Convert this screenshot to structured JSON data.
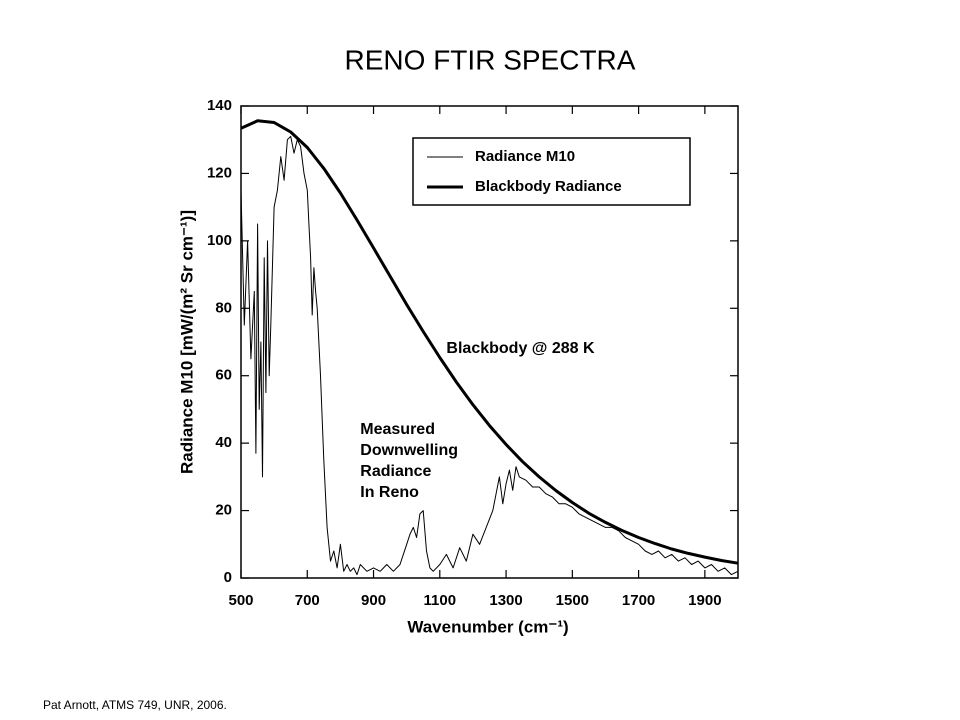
{
  "chart_data": {
    "type": "line",
    "title": "RENO FTIR SPECTRA",
    "x_label": "Wavenumber (cm⁻¹)",
    "y_label": "Radiance M10 [mW/(m² Sr cm⁻¹)]",
    "xlim": [
      500,
      2000
    ],
    "ylim": [
      0,
      140
    ],
    "xticks": [
      500,
      700,
      900,
      1100,
      1300,
      1500,
      1700,
      1900
    ],
    "yticks": [
      0,
      20,
      40,
      60,
      80,
      100,
      120,
      140
    ],
    "legend": "upper right",
    "annotations": [
      {
        "text": [
          "Blackbody @ 288 K"
        ],
        "x": 1120,
        "y": 68
      },
      {
        "text": [
          "Measured",
          "Downwelling",
          "Radiance",
          "In Reno"
        ],
        "x": 860,
        "y": 44
      }
    ],
    "footer": "Pat Arnott, ATMS 749, UNR, 2006.",
    "series": [
      {
        "name": "Radiance M10",
        "color": "#000000",
        "width": 1,
        "x": [
          500,
          510,
          520,
          530,
          540,
          545,
          550,
          555,
          560,
          565,
          570,
          575,
          580,
          585,
          590,
          600,
          610,
          620,
          630,
          640,
          650,
          660,
          670,
          680,
          690,
          700,
          705,
          710,
          715,
          720,
          725,
          730,
          740,
          750,
          760,
          770,
          780,
          790,
          800,
          810,
          820,
          830,
          840,
          850,
          860,
          880,
          900,
          920,
          940,
          960,
          980,
          1000,
          1010,
          1020,
          1030,
          1040,
          1050,
          1060,
          1070,
          1080,
          1100,
          1120,
          1140,
          1160,
          1180,
          1200,
          1220,
          1240,
          1260,
          1270,
          1280,
          1290,
          1300,
          1310,
          1320,
          1330,
          1340,
          1360,
          1380,
          1400,
          1420,
          1440,
          1460,
          1480,
          1500,
          1520,
          1540,
          1560,
          1580,
          1600,
          1620,
          1640,
          1660,
          1680,
          1700,
          1720,
          1740,
          1760,
          1780,
          1800,
          1820,
          1840,
          1860,
          1880,
          1900,
          1920,
          1940,
          1960,
          1980,
          2000
        ],
        "values": [
          115,
          75,
          100,
          65,
          85,
          37,
          105,
          50,
          70,
          30,
          95,
          55,
          100,
          60,
          75,
          110,
          115,
          125,
          118,
          130,
          131,
          126,
          130,
          128,
          120,
          115,
          105,
          95,
          78,
          92,
          85,
          80,
          60,
          35,
          15,
          5,
          8,
          3,
          10,
          2,
          4,
          2,
          3,
          1,
          4,
          2,
          3,
          2,
          4,
          2,
          4,
          10,
          13,
          15,
          12,
          19,
          20,
          8,
          3,
          2,
          4,
          7,
          3,
          9,
          5,
          13,
          10,
          15,
          20,
          25,
          30,
          22,
          28,
          32,
          26,
          33,
          30,
          29,
          27,
          27,
          25,
          24,
          22,
          22,
          21,
          19,
          18,
          17,
          16,
          15,
          15,
          14,
          12,
          11,
          10,
          8,
          7,
          8,
          6,
          7,
          5,
          6,
          4,
          5,
          3,
          4,
          2,
          3,
          1,
          2
        ]
      },
      {
        "name": "Blackbody Radiance",
        "color": "#000000",
        "width": 3,
        "x": [
          500,
          550,
          600,
          650,
          700,
          750,
          800,
          850,
          900,
          950,
          1000,
          1050,
          1100,
          1150,
          1200,
          1250,
          1300,
          1350,
          1400,
          1450,
          1500,
          1550,
          1600,
          1650,
          1700,
          1750,
          1800,
          1850,
          1900,
          1950,
          2000
        ],
        "values": [
          133.4,
          135.6,
          135.1,
          132.3,
          127.7,
          121.5,
          114.2,
          106.2,
          97.9,
          89.5,
          81.1,
          73.1,
          65.4,
          58.1,
          51.4,
          45.2,
          39.6,
          34.5,
          30.0,
          25.96,
          22.4,
          19.2,
          16.5,
          14.1,
          12.0,
          10.2,
          8.6,
          7.3,
          6.2,
          5.2,
          4.4
        ]
      }
    ]
  }
}
